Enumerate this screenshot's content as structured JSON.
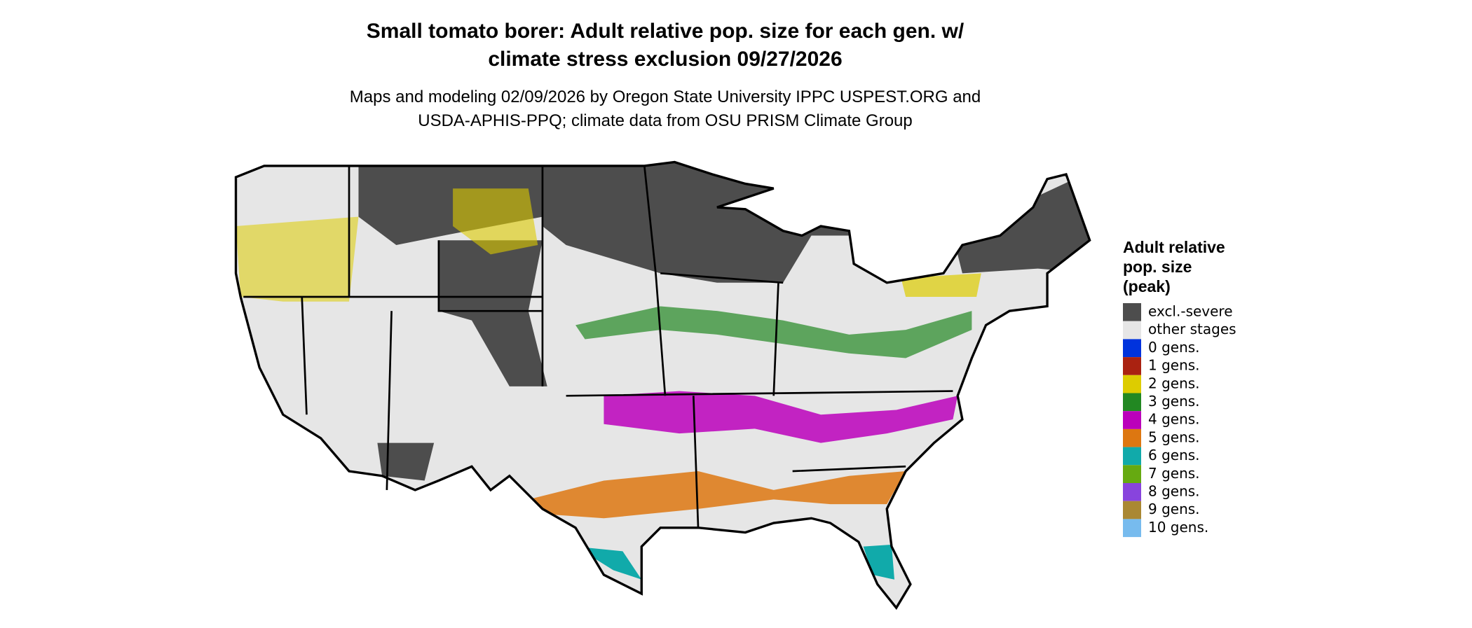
{
  "header": {
    "title": "Small tomato borer: Adult relative pop. size for each gen. w/\nclimate stress exclusion 09/27/2026",
    "subtitle": "Maps and modeling 02/09/2026 by Oregon State University IPPC USPEST.ORG and\nUSDA-APHIS-PPQ; climate data from OSU PRISM Climate Group"
  },
  "legend": {
    "title": "Adult relative\npop. size\n(peak)",
    "items": [
      {
        "label": "excl.-severe",
        "color": "#4d4d4d"
      },
      {
        "label": "other stages",
        "color": "#e6e6e6"
      },
      {
        "label": "0 gens.",
        "color": "#0033dd"
      },
      {
        "label": "1 gens.",
        "color": "#aa2211"
      },
      {
        "label": "2 gens.",
        "color": "#ddcc00"
      },
      {
        "label": "3 gens.",
        "color": "#228822"
      },
      {
        "label": "4 gens.",
        "color": "#bb00bb"
      },
      {
        "label": "5 gens.",
        "color": "#dd7711"
      },
      {
        "label": "6 gens.",
        "color": "#11aaaa"
      },
      {
        "label": "7 gens.",
        "color": "#66aa11"
      },
      {
        "label": "8 gens.",
        "color": "#8844dd"
      },
      {
        "label": "9 gens.",
        "color": "#aa8833"
      },
      {
        "label": "10 gens.",
        "color": "#77bbee"
      }
    ]
  }
}
